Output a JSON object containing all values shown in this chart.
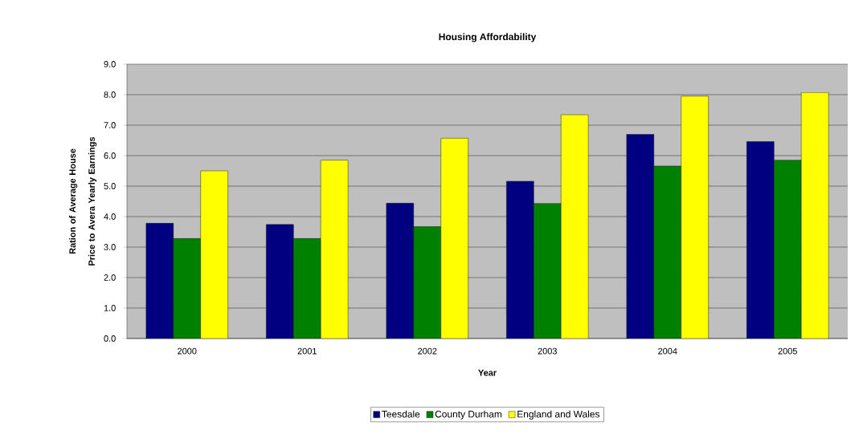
{
  "chart_data": {
    "type": "bar",
    "title": "Housing Affordability",
    "xlabel": "Year",
    "ylabel": "Ration of Average House Price to Avera Yearly Earnings",
    "categories": [
      "2000",
      "2001",
      "2002",
      "2003",
      "2004",
      "2005"
    ],
    "series": [
      {
        "name": "Teesdale",
        "color": "#000080",
        "values": [
          3.78,
          3.74,
          4.44,
          5.16,
          6.7,
          6.46
        ]
      },
      {
        "name": "County Durham",
        "color": "#008000",
        "values": [
          3.28,
          3.28,
          3.67,
          4.43,
          5.66,
          5.85
        ]
      },
      {
        "name": "England and Wales",
        "color": "#ffff00",
        "values": [
          5.5,
          5.85,
          6.57,
          7.34,
          7.95,
          8.07
        ]
      }
    ],
    "ylim": [
      0,
      9
    ],
    "yticks": [
      {
        "value": 0,
        "label": "0.0"
      },
      {
        "value": 1,
        "label": "1.0"
      },
      {
        "value": 2,
        "label": "2.0"
      },
      {
        "value": 3,
        "label": "3.0"
      },
      {
        "value": 4,
        "label": "4.0"
      },
      {
        "value": 5,
        "label": "5.0"
      },
      {
        "value": 6,
        "label": "6.0"
      },
      {
        "value": 7,
        "label": "7.0"
      },
      {
        "value": 8,
        "label": "8.0"
      },
      {
        "value": 9,
        "label": "9.0"
      }
    ],
    "grid": "y",
    "legend": "bottom"
  }
}
